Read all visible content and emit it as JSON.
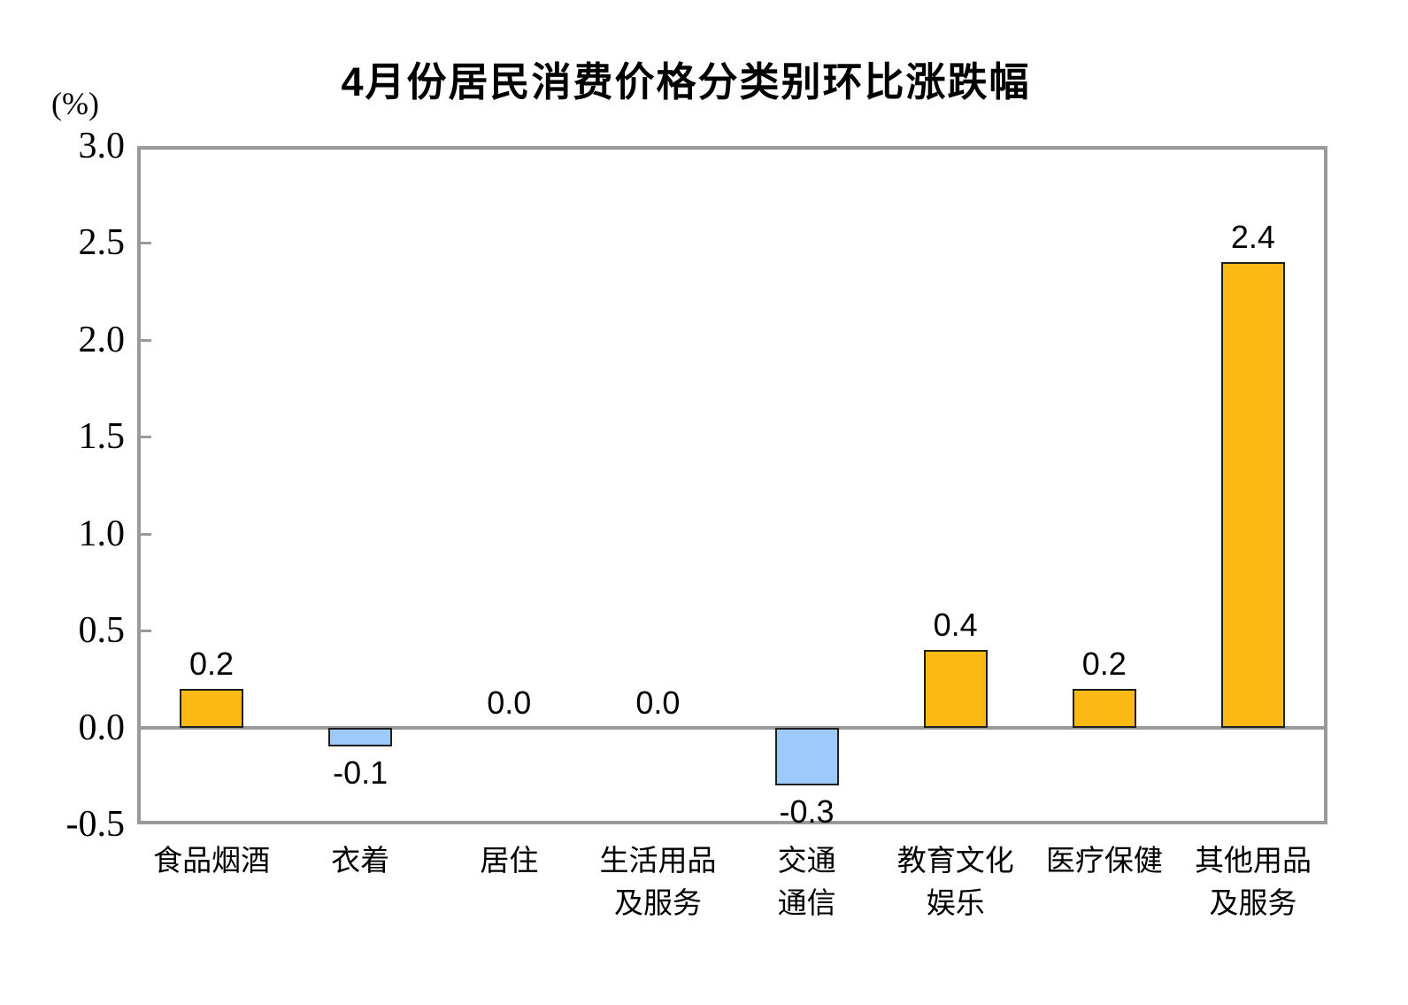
{
  "chart_title": "4月份居民消费价格分类别环比涨跌幅",
  "y_axis_unit": "(%)",
  "colors": {
    "positive_bar": "#FCB813",
    "negative_bar": "#9DCAF8",
    "bar_border": "#1F1F1F",
    "axis_frame": "#9A9A9A",
    "text": "#000000",
    "background": "#FFFFFF"
  },
  "chart_data": {
    "type": "bar",
    "title": "4月份居民消费价格分类别环比涨跌幅",
    "ylabel": "(%)",
    "xlabel": "",
    "ylim": [
      -0.5,
      3.0
    ],
    "ytick_step": 0.5,
    "ytick_labels": [
      "3.0",
      "2.5",
      "2.0",
      "1.5",
      "1.0",
      "0.5",
      "0.0",
      "-0.5"
    ],
    "grid": false,
    "legend": "none",
    "categories": [
      "食品烟酒",
      "衣着",
      "居住",
      "生活用品及服务",
      "交通通信",
      "教育文化娱乐",
      "医疗保健",
      "其他用品及服务"
    ],
    "category_label_lines": [
      [
        "食品烟酒"
      ],
      [
        "衣着"
      ],
      [
        "居住"
      ],
      [
        "生活用品",
        "及服务"
      ],
      [
        "交通",
        "通信"
      ],
      [
        "教育文化",
        "娱乐"
      ],
      [
        "医疗保健"
      ],
      [
        "其他用品",
        "及服务"
      ]
    ],
    "values": [
      0.2,
      -0.1,
      0.0,
      0.0,
      -0.3,
      0.4,
      0.2,
      2.4
    ],
    "value_labels": [
      "0.2",
      "-0.1",
      "0.0",
      "0.0",
      "-0.3",
      "0.4",
      "0.2",
      "2.4"
    ]
  }
}
